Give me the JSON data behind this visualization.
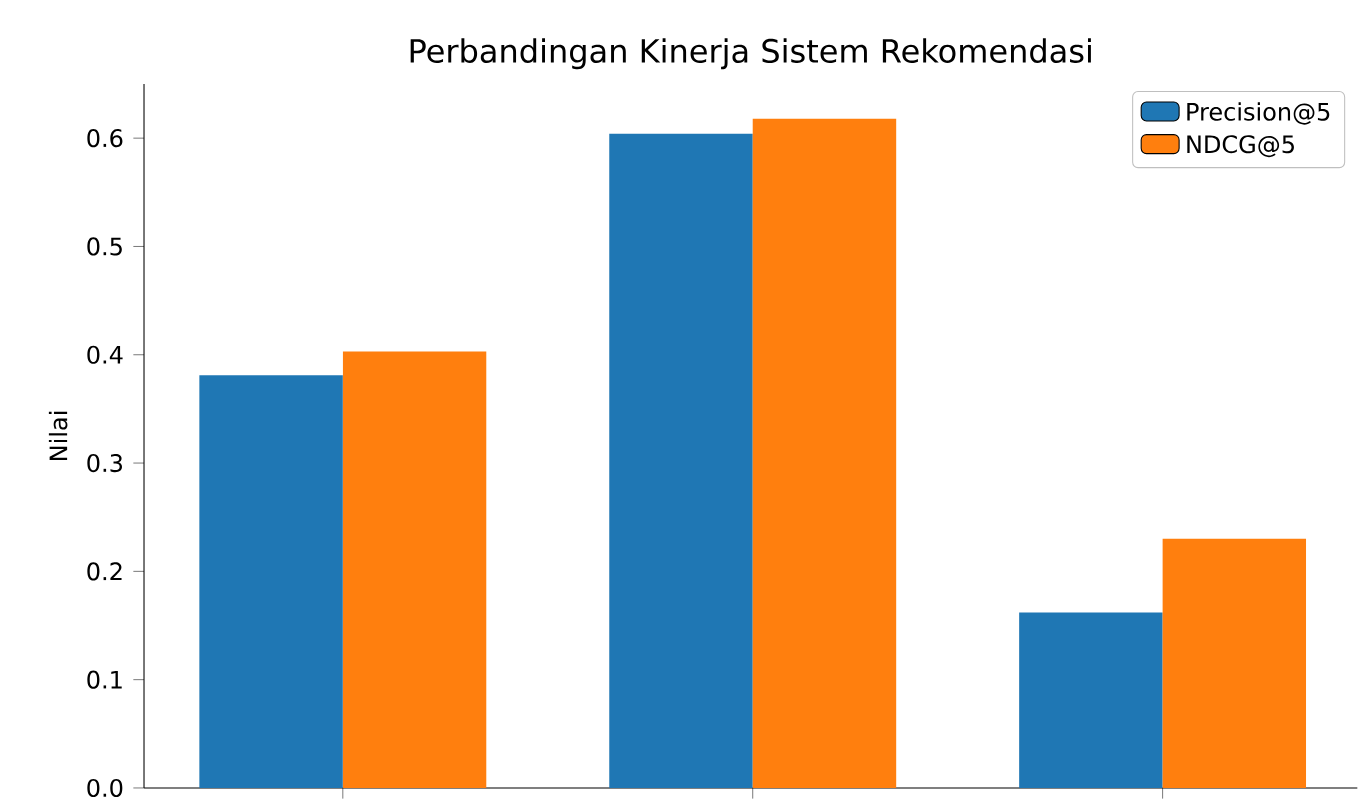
{
  "chart_data": {
    "type": "bar",
    "title": "Perbandingan Kinerja Sistem Rekomendasi",
    "ylabel": "Nilai",
    "categories": [
      null,
      null,
      null
    ],
    "series": [
      {
        "name": "Precision@5",
        "color": "#1f77b4",
        "values": [
          0.381,
          0.604,
          0.162
        ]
      },
      {
        "name": "NDCG@5",
        "color": "#ff7f0e",
        "values": [
          0.403,
          0.618,
          0.23
        ]
      }
    ],
    "ylim": [
      0,
      0.65
    ],
    "yticks": [
      {
        "value": 0,
        "label": "0.0"
      },
      0.1,
      0.2,
      0.3,
      0.4,
      0.5,
      0.6
    ],
    "legend": "top right",
    "grid": false
  }
}
